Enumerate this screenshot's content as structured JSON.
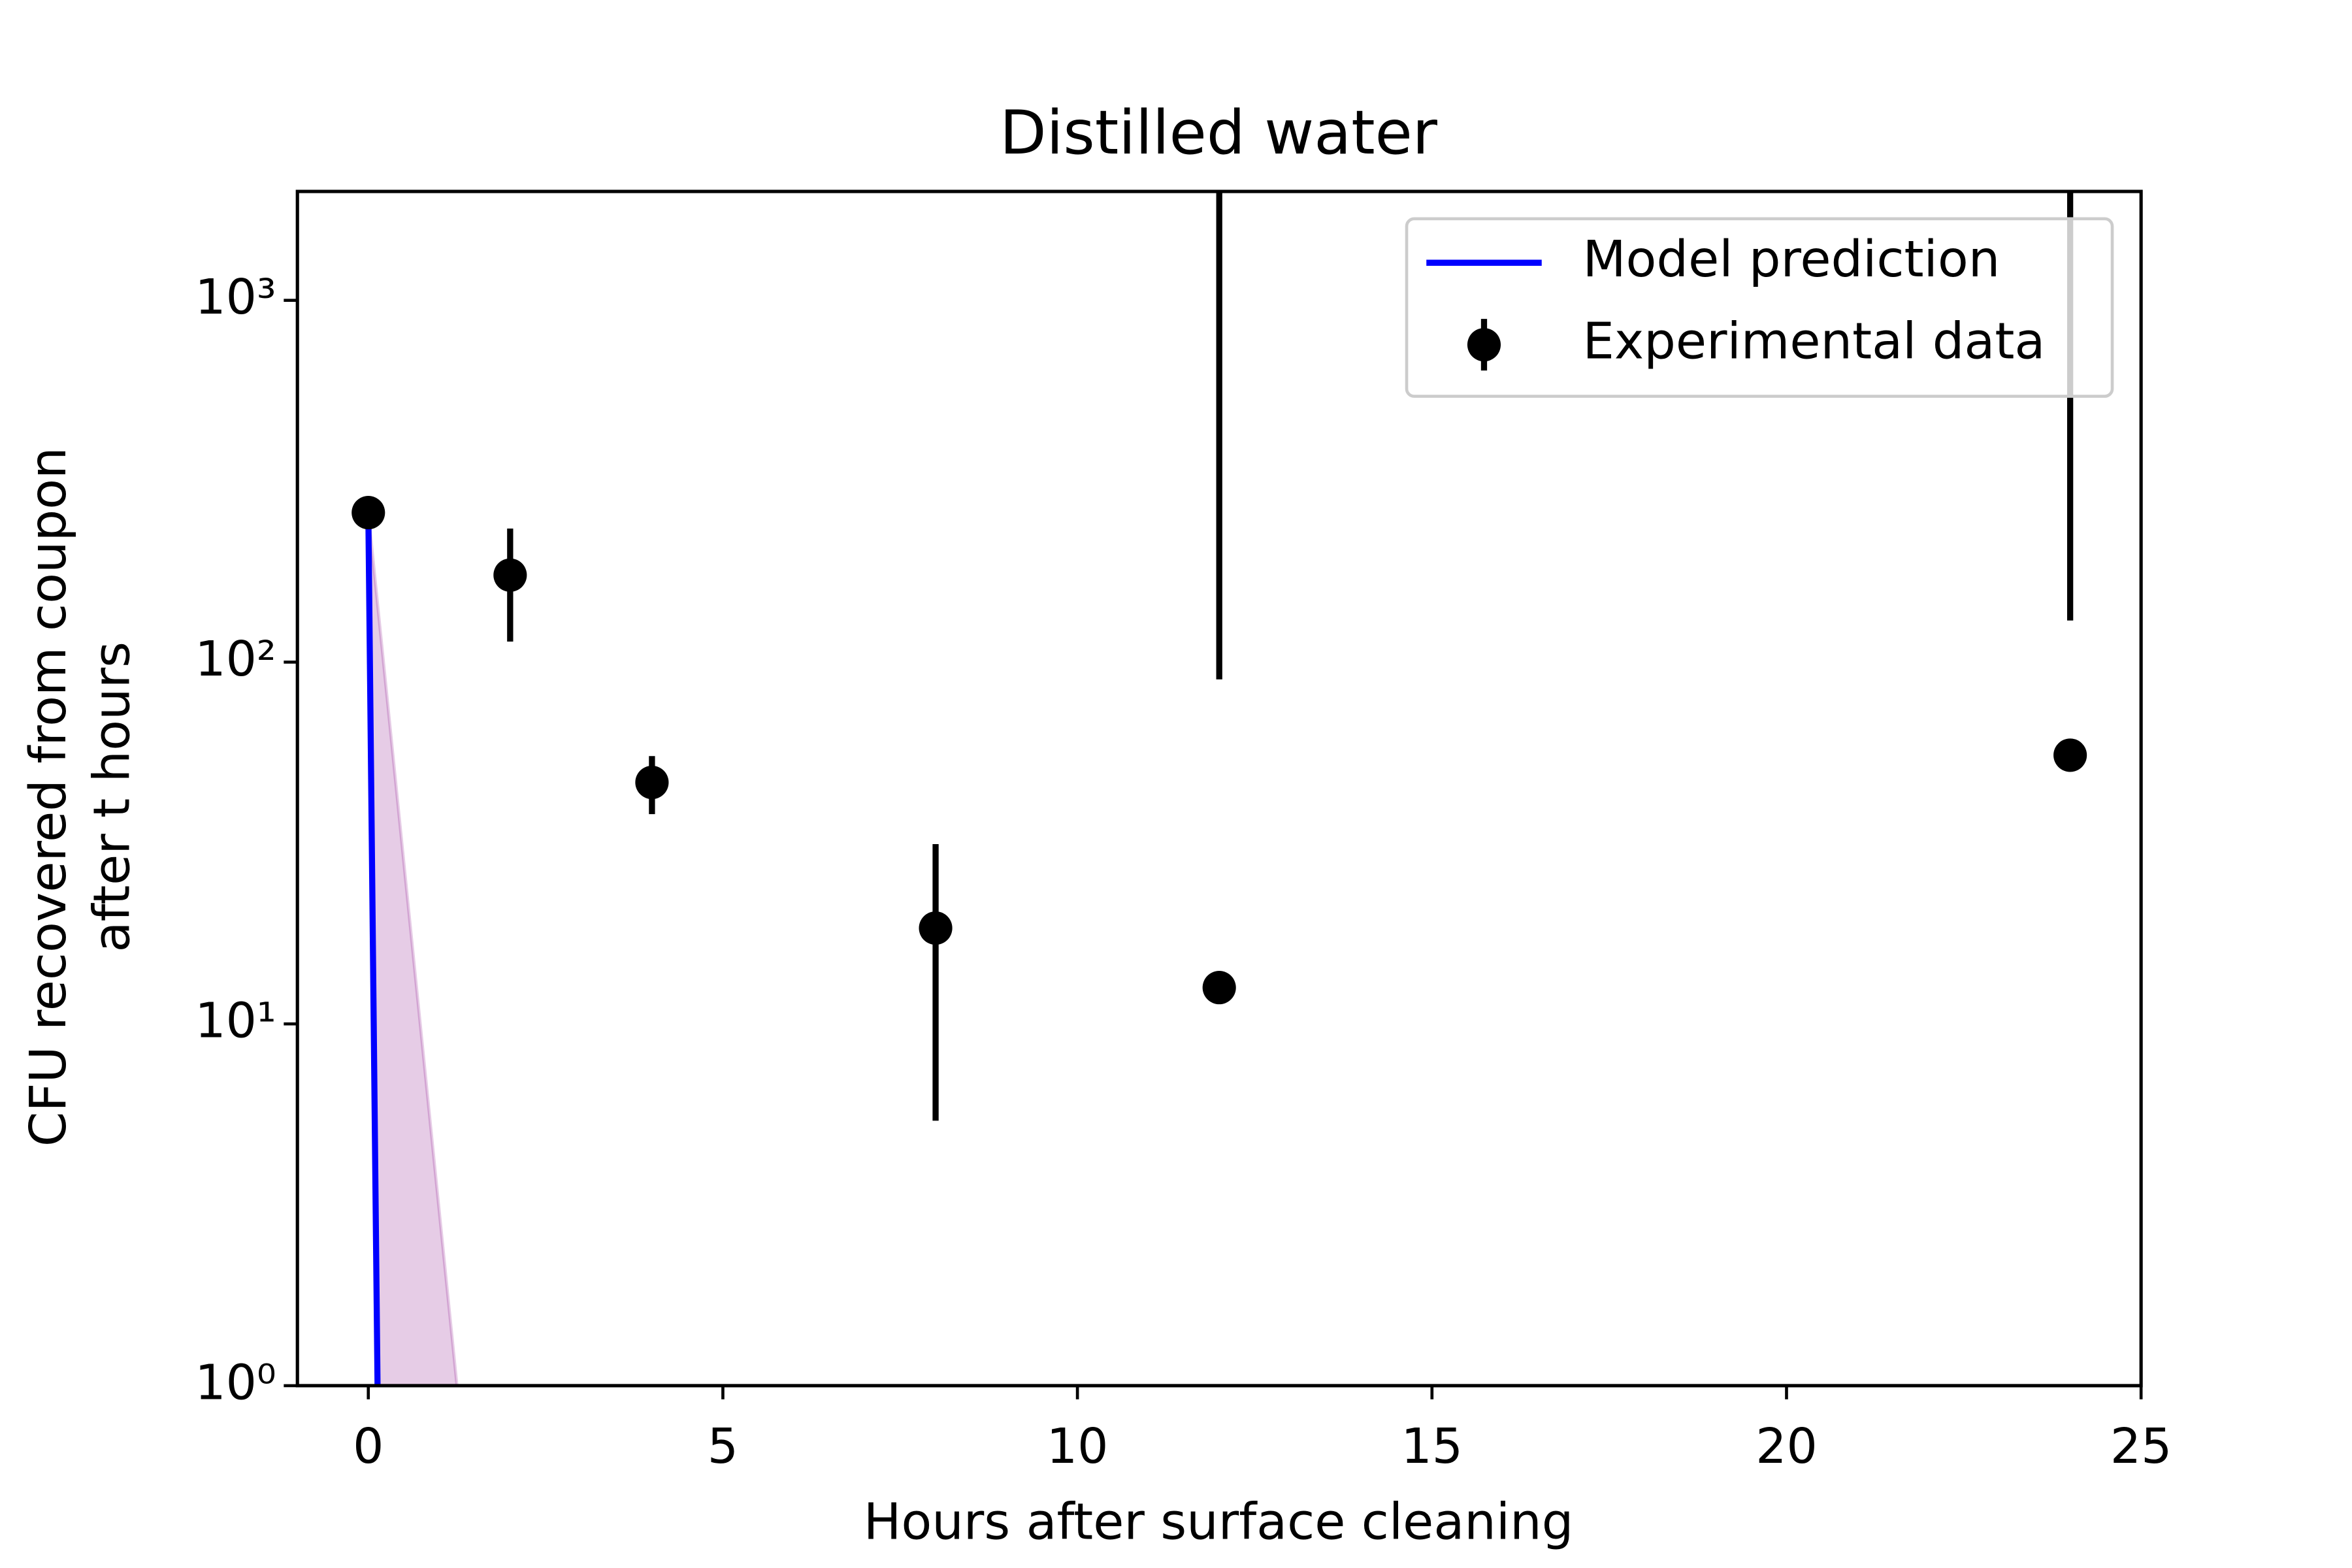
{
  "chart_data": {
    "type": "line",
    "title": "Distilled water",
    "xlabel": "Hours after surface cleaning",
    "ylabel": [
      "CFU recovered from coupon",
      "after t hours"
    ],
    "xlim": [
      -1,
      25
    ],
    "xticks": [
      0,
      5,
      10,
      15,
      20,
      25
    ],
    "ylim": [
      1,
      2000
    ],
    "ylog": true,
    "yticks": [
      {
        "value": 1,
        "label": "10⁰"
      },
      {
        "value": 10,
        "label": "10¹"
      },
      {
        "value": 100,
        "label": "10²"
      },
      {
        "value": 1000,
        "label": "10³"
      }
    ],
    "legend": "upper right",
    "interval": {
      "x": [
        0,
        0.13,
        1.25
      ],
      "upper": [
        259,
        145,
        1
      ],
      "lower": [
        259,
        1,
        1
      ],
      "color": "#800080"
    },
    "series": [
      {
        "name": "Model prediction",
        "color": "#0000ff",
        "x": [
          0,
          0.13
        ],
        "values": [
          259,
          1
        ]
      },
      {
        "name": "Experimental data",
        "color": "#000000",
        "x": [
          0,
          2,
          4,
          8,
          12,
          24
        ],
        "values": [
          259,
          174,
          46.5,
          18.4,
          12.6,
          55.3
        ],
        "errors": [
          0,
          60,
          8.5,
          13,
          77,
          75
        ]
      }
    ]
  }
}
